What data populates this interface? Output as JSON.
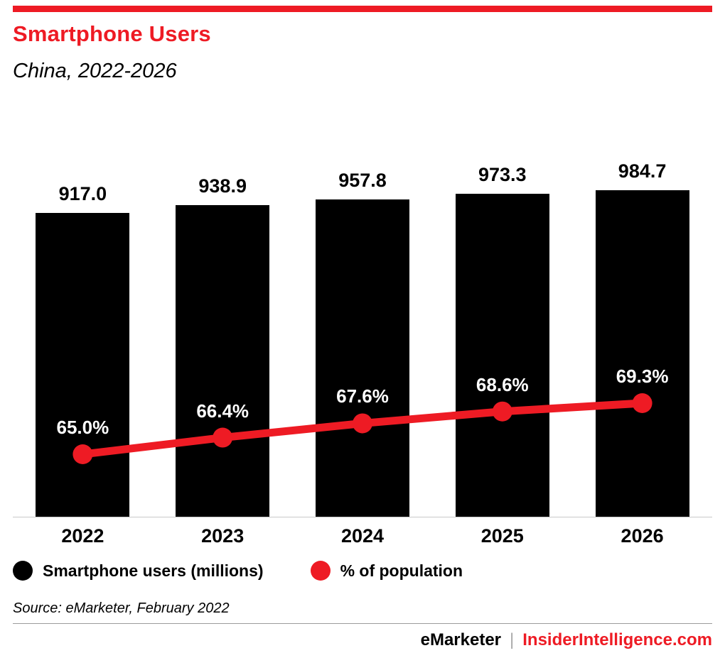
{
  "header": {
    "title": "Smartphone Users",
    "subtitle": "China, 2022-2026",
    "accent_color": "#ee1b24"
  },
  "chart_data": {
    "type": "bar",
    "title": "Smartphone Users",
    "subtitle": "China, 2022-2026",
    "categories": [
      "2022",
      "2023",
      "2024",
      "2025",
      "2026"
    ],
    "series": [
      {
        "name": "Smartphone users (millions)",
        "type": "bar",
        "color": "#000000",
        "values": [
          917.0,
          938.9,
          957.8,
          973.3,
          984.7
        ],
        "labels": [
          "917.0",
          "938.9",
          "957.8",
          "973.3",
          "984.7"
        ]
      },
      {
        "name": "% of population",
        "type": "line",
        "color": "#ee1b24",
        "values": [
          65.0,
          66.4,
          67.6,
          68.6,
          69.3
        ],
        "labels": [
          "65.0%",
          "66.4%",
          "67.6%",
          "68.6%",
          "69.3%"
        ]
      }
    ],
    "xlabel": "",
    "ylabel": "",
    "bar_axis": {
      "min": 0,
      "max": 1000
    },
    "line_axis_unit": "%",
    "grid": false,
    "legend_position": "bottom"
  },
  "legend": {
    "items": [
      {
        "label": "Smartphone users (millions)",
        "color": "#000000"
      },
      {
        "label": "% of population",
        "color": "#ee1b24"
      }
    ]
  },
  "source": "Source: eMarketer, February 2022",
  "footer": {
    "brand": "eMarketer",
    "separator": "|",
    "site": "InsiderIntelligence.com"
  }
}
